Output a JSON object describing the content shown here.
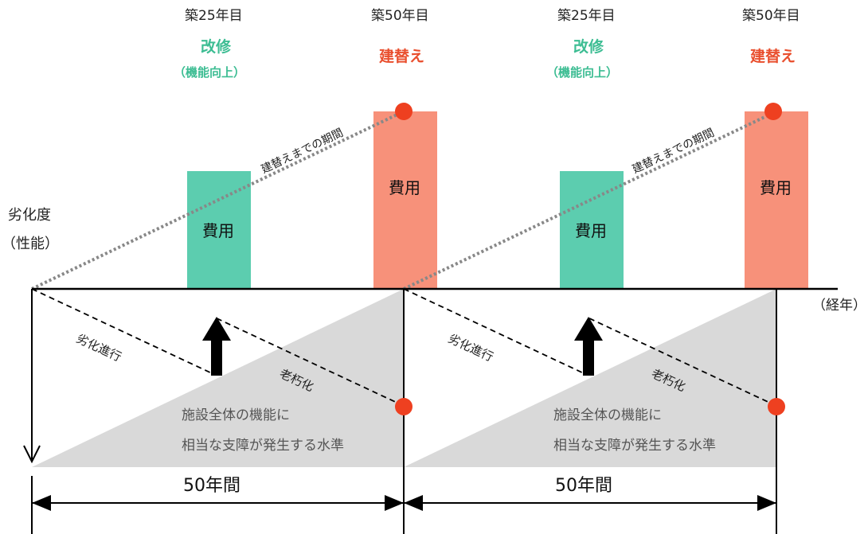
{
  "cycles": [
    {
      "renovation": {
        "year_label": "築25年目",
        "title": "改修",
        "subtitle": "（機能向上）",
        "cost_label": "費用"
      },
      "rebuild": {
        "year_label": "築50年目",
        "title": "建替え",
        "cost_label": "費用"
      },
      "period_label": "建替えまでの期間",
      "degradation_label": "劣化進行",
      "aging_label": "老朽化",
      "threshold_line1": "施設全体の機能に",
      "threshold_line2": "相当な支障が発生する水準",
      "duration_label": "50年間"
    },
    {
      "renovation": {
        "year_label": "築25年目",
        "title": "改修",
        "subtitle": "（機能向上）",
        "cost_label": "費用"
      },
      "rebuild": {
        "year_label": "築50年目",
        "title": "建替え",
        "cost_label": "費用"
      },
      "period_label": "建替えまでの期間",
      "degradation_label": "劣化進行",
      "aging_label": "老朽化",
      "threshold_line1": "施設全体の機能に",
      "threshold_line2": "相当な支障が発生する水準",
      "duration_label": "50年間"
    }
  ],
  "axes": {
    "y_label_line1": "劣化度",
    "y_label_line2": "（性能）",
    "x_label": "（経年）"
  },
  "colors": {
    "renovation": "#5ccdaf",
    "rebuild": "#f7917a",
    "marker": "#ee4020",
    "threshold_fill": "#d9d9d9"
  }
}
